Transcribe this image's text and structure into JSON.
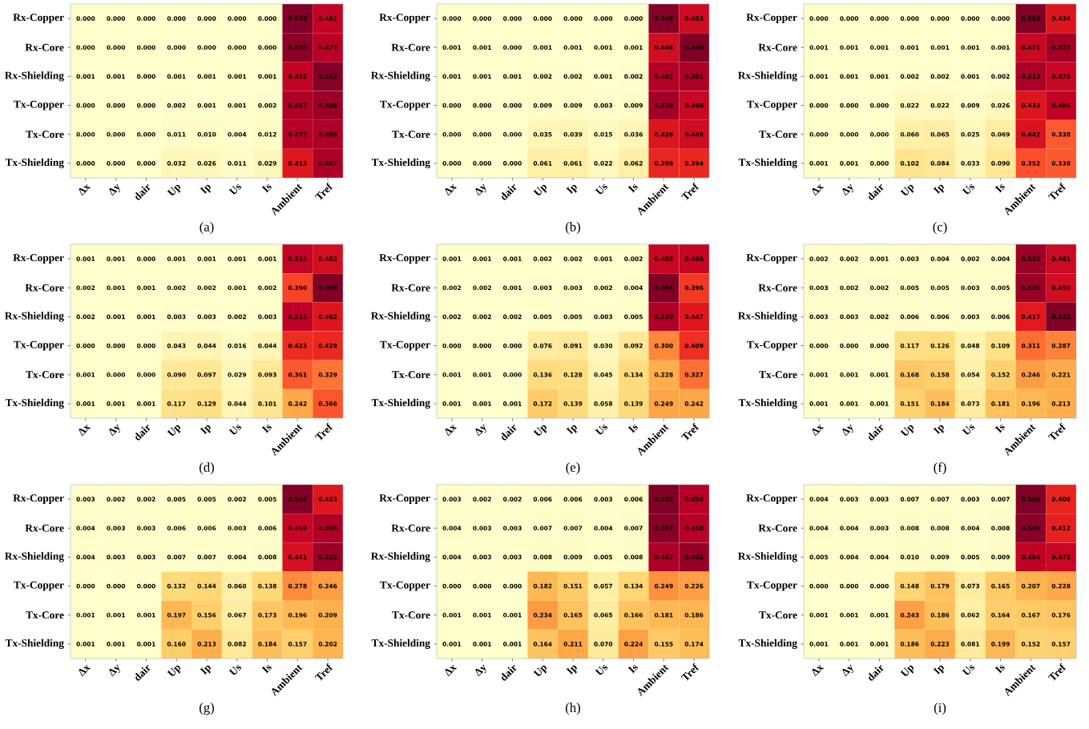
{
  "chart_data": [
    {
      "type": "heatmap",
      "xlabel": "(a)",
      "categories": [
        "Δx",
        "Δy",
        "dair",
        "Up",
        "Ip",
        "Us",
        "Is",
        "Ambient",
        "Tref"
      ],
      "y_categories": [
        "Rx-Copper",
        "Rx-Core",
        "Rx-Shielding",
        "Tx-Copper",
        "Tx-Core",
        "Tx-Shielding"
      ],
      "cells": [
        [
          0.0,
          0.0,
          0.0,
          0.0,
          0.0,
          0.0,
          0.0,
          0.538,
          0.461
        ],
        [
          0.0,
          0.0,
          0.0,
          0.0,
          0.0,
          0.0,
          0.0,
          0.525,
          0.473
        ],
        [
          0.001,
          0.001,
          0.0,
          0.001,
          0.001,
          0.001,
          0.001,
          0.462,
          0.533
        ],
        [
          0.0,
          0.0,
          0.0,
          0.002,
          0.001,
          0.001,
          0.002,
          0.487,
          0.508
        ],
        [
          0.0,
          0.0,
          0.0,
          0.011,
          0.01,
          0.004,
          0.012,
          0.477,
          0.486
        ],
        [
          0.0,
          0.0,
          0.0,
          0.032,
          0.026,
          0.011,
          0.029,
          0.413,
          0.487
        ]
      ],
      "cell_labels": [
        [
          "0.000",
          "0.000",
          "0.000",
          "0.000",
          "0.000",
          "0.000",
          "0.000",
          "0.538",
          "0.461"
        ],
        [
          "0.000",
          "0.000",
          "0.000",
          "0.000",
          "0.000",
          "0.000",
          "0.000",
          "0.525",
          "0.473"
        ],
        [
          "0.001",
          "0.001",
          "0.000",
          "0.001",
          "0.001",
          "0.001",
          "0.001",
          "0.462",
          "0.533"
        ],
        [
          "0.000",
          "0.000",
          "0.000",
          "0.002",
          "0.001",
          "0.001",
          "0.002",
          "0.487",
          "0.508"
        ],
        [
          "0.000",
          "0.000",
          "0.000",
          "0.011",
          "0.010",
          "0.004",
          "0.012",
          "0.477",
          "0.486"
        ],
        [
          "0.000",
          "0.000",
          "0.000",
          "0.032",
          "0.026",
          "0.011",
          "0.029",
          "0.413",
          "0.487"
        ]
      ]
    },
    {
      "type": "heatmap",
      "xlabel": "(b)",
      "categories": [
        "Δx",
        "Δy",
        "dair",
        "Up",
        "Ip",
        "Us",
        "Is",
        "Ambient",
        "Tref"
      ],
      "y_categories": [
        "Rx-Copper",
        "Rx-Core",
        "Rx-Shielding",
        "Tx-Copper",
        "Tx-Core",
        "Tx-Shielding"
      ],
      "cells": [
        [
          0.0,
          0.0,
          0.0,
          0.0,
          0.0,
          0.0,
          0.0,
          0.546,
          0.453
        ],
        [
          0.001,
          0.001,
          0.0,
          0.001,
          0.001,
          0.001,
          0.001,
          0.446,
          0.55
        ],
        [
          0.001,
          0.001,
          0.001,
          0.002,
          0.002,
          0.001,
          0.002,
          0.491,
          0.501
        ],
        [
          0.0,
          0.0,
          0.0,
          0.009,
          0.009,
          0.003,
          0.009,
          0.51,
          0.46
        ],
        [
          0.0,
          0.0,
          0.0,
          0.035,
          0.039,
          0.015,
          0.036,
          0.426,
          0.449
        ],
        [
          0.0,
          0.0,
          0.0,
          0.061,
          0.061,
          0.022,
          0.062,
          0.398,
          0.394
        ]
      ],
      "cell_labels": [
        [
          "0.000",
          "0.000",
          "0.000",
          "0.000",
          "0.000",
          "0.000",
          "0.000",
          "0.546",
          "0.453"
        ],
        [
          "0.001",
          "0.001",
          "0.000",
          "0.001",
          "0.001",
          "0.001",
          "0.001",
          "0.446",
          "0.550"
        ],
        [
          "0.001",
          "0.001",
          "0.001",
          "0.002",
          "0.002",
          "0.001",
          "0.002",
          "0.491",
          "0.501"
        ],
        [
          "0.000",
          "0.000",
          "0.000",
          "0.009",
          "0.009",
          "0.003",
          "0.009",
          "0.510",
          "0.460"
        ],
        [
          "0.000",
          "0.000",
          "0.000",
          "0.035",
          "0.039",
          "0.015",
          "0.036",
          "0.426",
          "0.449"
        ],
        [
          "0.000",
          "0.000",
          "0.000",
          "0.061",
          "0.061",
          "0.022",
          "0.062",
          "0.398",
          "0.394"
        ]
      ]
    },
    {
      "type": "heatmap",
      "xlabel": "(c)",
      "categories": [
        "Δx",
        "Δy",
        "dair",
        "Up",
        "Ip",
        "Us",
        "Is",
        "Ambient",
        "Tref"
      ],
      "y_categories": [
        "Rx-Copper",
        "Rx-Core",
        "Rx-Shielding",
        "Tx-Copper",
        "Tx-Core",
        "Tx-Shielding"
      ],
      "cells": [
        [
          0.0,
          0.0,
          0.0,
          0.0,
          0.0,
          0.0,
          0.0,
          0.563,
          0.434
        ],
        [
          0.001,
          0.001,
          0.001,
          0.001,
          0.001,
          0.001,
          0.001,
          0.471,
          0.522
        ],
        [
          0.001,
          0.001,
          0.001,
          0.002,
          0.002,
          0.001,
          0.002,
          0.513,
          0.475
        ],
        [
          0.0,
          0.0,
          0.0,
          0.022,
          0.022,
          0.009,
          0.026,
          0.433,
          0.486
        ],
        [
          0.0,
          0.0,
          0.0,
          0.06,
          0.065,
          0.025,
          0.069,
          0.442,
          0.338
        ],
        [
          0.001,
          0.001,
          0.0,
          0.102,
          0.084,
          0.033,
          0.09,
          0.352,
          0.338
        ]
      ],
      "cell_labels": [
        [
          "0.000",
          "0.000",
          "0.000",
          "0.000",
          "0.000",
          "0.000",
          "0.000",
          "0.563",
          "0.434"
        ],
        [
          "0.001",
          "0.001",
          "0.001",
          "0.001",
          "0.001",
          "0.001",
          "0.001",
          "0.471",
          "0.522"
        ],
        [
          "0.001",
          "0.001",
          "0.001",
          "0.002",
          "0.002",
          "0.001",
          "0.002",
          "0.513",
          "0.475"
        ],
        [
          "0.000",
          "0.000",
          "0.000",
          "0.022",
          "0.022",
          "0.009",
          "0.026",
          "0.433",
          "0.486"
        ],
        [
          "0.000",
          "0.000",
          "0.000",
          "0.060",
          "0.065",
          "0.025",
          "0.069",
          "0.442",
          "0.338"
        ],
        [
          "0.001",
          "0.001",
          "0.000",
          "0.102",
          "0.084",
          "0.033",
          "0.090",
          "0.352",
          "0.338"
        ]
      ]
    },
    {
      "type": "heatmap",
      "xlabel": "(d)",
      "categories": [
        "Δx",
        "Δy",
        "dair",
        "Up",
        "Ip",
        "Us",
        "Is",
        "Ambient",
        "Tref"
      ],
      "y_categories": [
        "Rx-Copper",
        "Rx-Core",
        "Rx-Shielding",
        "Tx-Copper",
        "Tx-Core",
        "Tx-Shielding"
      ],
      "cells": [
        [
          0.001,
          0.001,
          0.0,
          0.001,
          0.001,
          0.001,
          0.001,
          0.514,
          0.482
        ],
        [
          0.002,
          0.001,
          0.001,
          0.002,
          0.002,
          0.001,
          0.002,
          0.39,
          0.599
        ],
        [
          0.002,
          0.001,
          0.001,
          0.003,
          0.003,
          0.002,
          0.003,
          0.523,
          0.462
        ],
        [
          0.0,
          0.0,
          0.0,
          0.043,
          0.044,
          0.016,
          0.044,
          0.423,
          0.429
        ],
        [
          0.001,
          0.0,
          0.0,
          0.09,
          0.097,
          0.029,
          0.093,
          0.361,
          0.329
        ],
        [
          0.001,
          0.001,
          0.001,
          0.117,
          0.129,
          0.044,
          0.101,
          0.242,
          0.366
        ]
      ],
      "cell_labels": [
        [
          "0.001",
          "0.001",
          "0.000",
          "0.001",
          "0.001",
          "0.001",
          "0.001",
          "0.514",
          "0.482"
        ],
        [
          "0.002",
          "0.001",
          "0.001",
          "0.002",
          "0.002",
          "0.001",
          "0.002",
          "0.390",
          "0.599"
        ],
        [
          "0.002",
          "0.001",
          "0.001",
          "0.003",
          "0.003",
          "0.002",
          "0.003",
          "0.523",
          "0.462"
        ],
        [
          "0.000",
          "0.000",
          "0.000",
          "0.043",
          "0.044",
          "0.016",
          "0.044",
          "0.423",
          "0.429"
        ],
        [
          "0.001",
          "0.000",
          "0.000",
          "0.090",
          "0.097",
          "0.029",
          "0.093",
          "0.361",
          "0.329"
        ],
        [
          "0.001",
          "0.001",
          "0.001",
          "0.117",
          "0.129",
          "0.044",
          "0.101",
          "0.242",
          "0.366"
        ]
      ]
    },
    {
      "type": "heatmap",
      "xlabel": "(e)",
      "categories": [
        "Δx",
        "Δy",
        "dair",
        "Up",
        "Ip",
        "Us",
        "Is",
        "Ambient",
        "Tref"
      ],
      "y_categories": [
        "Rx-Copper",
        "Rx-Core",
        "Rx-Shielding",
        "Tx-Copper",
        "Tx-Core",
        "Tx-Shielding"
      ],
      "cells": [
        [
          0.001,
          0.001,
          0.001,
          0.002,
          0.002,
          0.001,
          0.002,
          0.493,
          0.496
        ],
        [
          0.002,
          0.002,
          0.001,
          0.003,
          0.003,
          0.002,
          0.004,
          0.586,
          0.396
        ],
        [
          0.002,
          0.002,
          0.002,
          0.005,
          0.005,
          0.003,
          0.005,
          0.53,
          0.447
        ],
        [
          0.0,
          0.0,
          0.0,
          0.076,
          0.091,
          0.03,
          0.092,
          0.3,
          0.409
        ],
        [
          0.001,
          0.001,
          0.0,
          0.136,
          0.128,
          0.045,
          0.134,
          0.228,
          0.327
        ],
        [
          0.001,
          0.001,
          0.001,
          0.172,
          0.139,
          0.058,
          0.139,
          0.249,
          0.242
        ]
      ],
      "cell_labels": [
        [
          "0.001",
          "0.001",
          "0.001",
          "0.002",
          "0.002",
          "0.001",
          "0.002",
          "0.493",
          "0.496"
        ],
        [
          "0.002",
          "0.002",
          "0.001",
          "0.003",
          "0.003",
          "0.002",
          "0.004",
          "0.586",
          "0.396"
        ],
        [
          "0.002",
          "0.002",
          "0.002",
          "0.005",
          "0.005",
          "0.003",
          "0.005",
          "0.530",
          "0.447"
        ],
        [
          "0.000",
          "0.000",
          "0.000",
          "0.076",
          "0.091",
          "0.030",
          "0.092",
          "0.300",
          "0.409"
        ],
        [
          "0.001",
          "0.001",
          "0.000",
          "0.136",
          "0.128",
          "0.045",
          "0.134",
          "0.228",
          "0.327"
        ],
        [
          "0.001",
          "0.001",
          "0.001",
          "0.172",
          "0.139",
          "0.058",
          "0.139",
          "0.249",
          "0.242"
        ]
      ]
    },
    {
      "type": "heatmap",
      "xlabel": "(f)",
      "categories": [
        "Δx",
        "Δy",
        "dair",
        "Up",
        "Ip",
        "Us",
        "Is",
        "Ambient",
        "Tref"
      ],
      "y_categories": [
        "Rx-Copper",
        "Rx-Core",
        "Rx-Shielding",
        "Tx-Copper",
        "Tx-Core",
        "Tx-Shielding"
      ],
      "cells": [
        [
          0.002,
          0.002,
          0.001,
          0.003,
          0.004,
          0.002,
          0.004,
          0.522,
          0.461
        ],
        [
          0.003,
          0.002,
          0.002,
          0.005,
          0.005,
          0.003,
          0.005,
          0.526,
          0.45
        ],
        [
          0.003,
          0.003,
          0.002,
          0.006,
          0.006,
          0.003,
          0.006,
          0.417,
          0.553
        ],
        [
          0.0,
          0.0,
          0.0,
          0.117,
          0.126,
          0.048,
          0.109,
          0.311,
          0.287
        ],
        [
          0.001,
          0.001,
          0.001,
          0.168,
          0.158,
          0.054,
          0.152,
          0.246,
          0.221
        ],
        [
          0.001,
          0.001,
          0.001,
          0.151,
          0.184,
          0.073,
          0.181,
          0.196,
          0.213
        ]
      ],
      "cell_labels": [
        [
          "0.002",
          "0.002",
          "0.001",
          "0.003",
          "0.004",
          "0.002",
          "0.004",
          "0.522",
          "0.461"
        ],
        [
          "0.003",
          "0.002",
          "0.002",
          "0.005",
          "0.005",
          "0.003",
          "0.005",
          "0.526",
          "0.450"
        ],
        [
          "0.003",
          "0.003",
          "0.002",
          "0.006",
          "0.006",
          "0.003",
          "0.006",
          "0.417",
          "0.553"
        ],
        [
          "0.000",
          "0.000",
          "0.000",
          "0.117",
          "0.126",
          "0.048",
          "0.109",
          "0.311",
          "0.287"
        ],
        [
          "0.001",
          "0.001",
          "0.001",
          "0.168",
          "0.158",
          "0.054",
          "0.152",
          "0.246",
          "0.221"
        ],
        [
          "0.001",
          "0.001",
          "0.001",
          "0.151",
          "0.184",
          "0.073",
          "0.181",
          "0.196",
          "0.213"
        ]
      ]
    },
    {
      "type": "heatmap",
      "xlabel": "(g)",
      "categories": [
        "Δx",
        "Δy",
        "dair",
        "Up",
        "Ip",
        "Us",
        "Is",
        "Ambient",
        "Tref"
      ],
      "y_categories": [
        "Rx-Copper",
        "Rx-Core",
        "Rx-Shielding",
        "Tx-Copper",
        "Tx-Core",
        "Tx-Shielding"
      ],
      "cells": [
        [
          0.003,
          0.002,
          0.002,
          0.005,
          0.005,
          0.002,
          0.005,
          0.554,
          0.423
        ],
        [
          0.004,
          0.003,
          0.003,
          0.006,
          0.006,
          0.003,
          0.006,
          0.469,
          0.5
        ],
        [
          0.004,
          0.003,
          0.003,
          0.007,
          0.007,
          0.004,
          0.008,
          0.441,
          0.522
        ],
        [
          0.0,
          0.0,
          0.0,
          0.132,
          0.144,
          0.06,
          0.138,
          0.278,
          0.246
        ],
        [
          0.001,
          0.001,
          0.001,
          0.197,
          0.156,
          0.067,
          0.173,
          0.196,
          0.209
        ],
        [
          0.001,
          0.001,
          0.001,
          0.16,
          0.213,
          0.082,
          0.184,
          0.157,
          0.202
        ]
      ],
      "cell_labels": [
        [
          "0.003",
          "0.002",
          "0.002",
          "0.005",
          "0.005",
          "0.002",
          "0.005",
          "0.554",
          "0.423"
        ],
        [
          "0.004",
          "0.003",
          "0.003",
          "0.006",
          "0.006",
          "0.003",
          "0.006",
          "0.469",
          "0.500"
        ],
        [
          "0.004",
          "0.003",
          "0.003",
          "0.007",
          "0.007",
          "0.004",
          "0.008",
          "0.441",
          "0.522"
        ],
        [
          "0.000",
          "0.000",
          "0.000",
          "0.132",
          "0.144",
          "0.060",
          "0.138",
          "0.278",
          "0.246"
        ],
        [
          "0.001",
          "0.001",
          "0.001",
          "0.197",
          "0.156",
          "0.067",
          "0.173",
          "0.196",
          "0.209"
        ],
        [
          "0.001",
          "0.001",
          "0.001",
          "0.160",
          "0.213",
          "0.082",
          "0.184",
          "0.157",
          "0.202"
        ]
      ]
    },
    {
      "type": "heatmap",
      "xlabel": "(h)",
      "categories": [
        "Δx",
        "Δy",
        "dair",
        "Up",
        "Ip",
        "Us",
        "Is",
        "Ambient",
        "Tref"
      ],
      "y_categories": [
        "Rx-Copper",
        "Rx-Core",
        "Rx-Shielding",
        "Tx-Copper",
        "Tx-Core",
        "Tx-Shielding"
      ],
      "cells": [
        [
          0.003,
          0.002,
          0.002,
          0.006,
          0.006,
          0.003,
          0.006,
          0.515,
          0.456
        ],
        [
          0.004,
          0.003,
          0.003,
          0.007,
          0.007,
          0.004,
          0.007,
          0.507,
          0.458
        ],
        [
          0.004,
          0.003,
          0.003,
          0.008,
          0.009,
          0.005,
          0.008,
          0.467,
          0.492
        ],
        [
          0.0,
          0.0,
          0.0,
          0.182,
          0.151,
          0.057,
          0.134,
          0.249,
          0.226
        ],
        [
          0.001,
          0.001,
          0.001,
          0.234,
          0.165,
          0.065,
          0.166,
          0.181,
          0.186
        ],
        [
          0.001,
          0.001,
          0.001,
          0.164,
          0.211,
          0.07,
          0.224,
          0.155,
          0.174
        ]
      ],
      "cell_labels": [
        [
          "0.003",
          "0.002",
          "0.002",
          "0.006",
          "0.006",
          "0.003",
          "0.006",
          "0.515",
          "0.456"
        ],
        [
          "0.004",
          "0.003",
          "0.003",
          "0.007",
          "0.007",
          "0.004",
          "0.007",
          "0.507",
          "0.458"
        ],
        [
          "0.004",
          "0.003",
          "0.003",
          "0.008",
          "0.009",
          "0.005",
          "0.008",
          "0.467",
          "0.492"
        ],
        [
          "0.000",
          "0.000",
          "0.000",
          "0.182",
          "0.151",
          "0.057",
          "0.134",
          "0.249",
          "0.226"
        ],
        [
          "0.001",
          "0.001",
          "0.001",
          "0.234",
          "0.165",
          "0.065",
          "0.166",
          "0.181",
          "0.186"
        ],
        [
          "0.001",
          "0.001",
          "0.001",
          "0.164",
          "0.211",
          "0.070",
          "0.224",
          "0.155",
          "0.174"
        ]
      ]
    },
    {
      "type": "heatmap",
      "xlabel": "(i)",
      "categories": [
        "Δx",
        "Δy",
        "dair",
        "Up",
        "Ip",
        "Us",
        "Is",
        "Ambient",
        "Tref"
      ],
      "y_categories": [
        "Rx-Copper",
        "Rx-Core",
        "Rx-Shielding",
        "Tx-Copper",
        "Tx-Core",
        "Tx-Shielding"
      ],
      "cells": [
        [
          0.004,
          0.003,
          0.003,
          0.007,
          0.007,
          0.003,
          0.007,
          0.56,
          0.406
        ],
        [
          0.004,
          0.004,
          0.003,
          0.008,
          0.008,
          0.004,
          0.008,
          0.549,
          0.412
        ],
        [
          0.005,
          0.004,
          0.004,
          0.01,
          0.009,
          0.005,
          0.009,
          0.484,
          0.472
        ],
        [
          0.0,
          0.0,
          0.0,
          0.148,
          0.179,
          0.073,
          0.165,
          0.207,
          0.228
        ],
        [
          0.001,
          0.001,
          0.001,
          0.243,
          0.186,
          0.062,
          0.164,
          0.167,
          0.176
        ],
        [
          0.001,
          0.001,
          0.001,
          0.186,
          0.223,
          0.081,
          0.199,
          0.152,
          0.157
        ]
      ],
      "cell_labels": [
        [
          "0.004",
          "0.003",
          "0.003",
          "0.007",
          "0.007",
          "0.003",
          "0.007",
          "0.560",
          "0.406"
        ],
        [
          "0.004",
          "0.004",
          "0.003",
          "0.008",
          "0.008",
          "0.004",
          "0.008",
          "0.549",
          "0.412"
        ],
        [
          "0.005",
          "0.004",
          "0.004",
          "0.010",
          "0.009",
          "0.005",
          "0.009",
          "0.484",
          "0.472"
        ],
        [
          "0.000",
          "0.000",
          "0.000",
          "0.148",
          "0.179",
          "0.073",
          "0.165",
          "0.207",
          "0.228"
        ],
        [
          "0.001",
          "0.001",
          "0.001",
          "0.243",
          "0.186",
          "0.062",
          "0.164",
          "0.167",
          "0.176"
        ],
        [
          "0.001",
          "0.001",
          "0.001",
          "0.186",
          "0.223",
          "0.081",
          "0.199",
          "0.152",
          "0.157"
        ]
      ]
    }
  ]
}
